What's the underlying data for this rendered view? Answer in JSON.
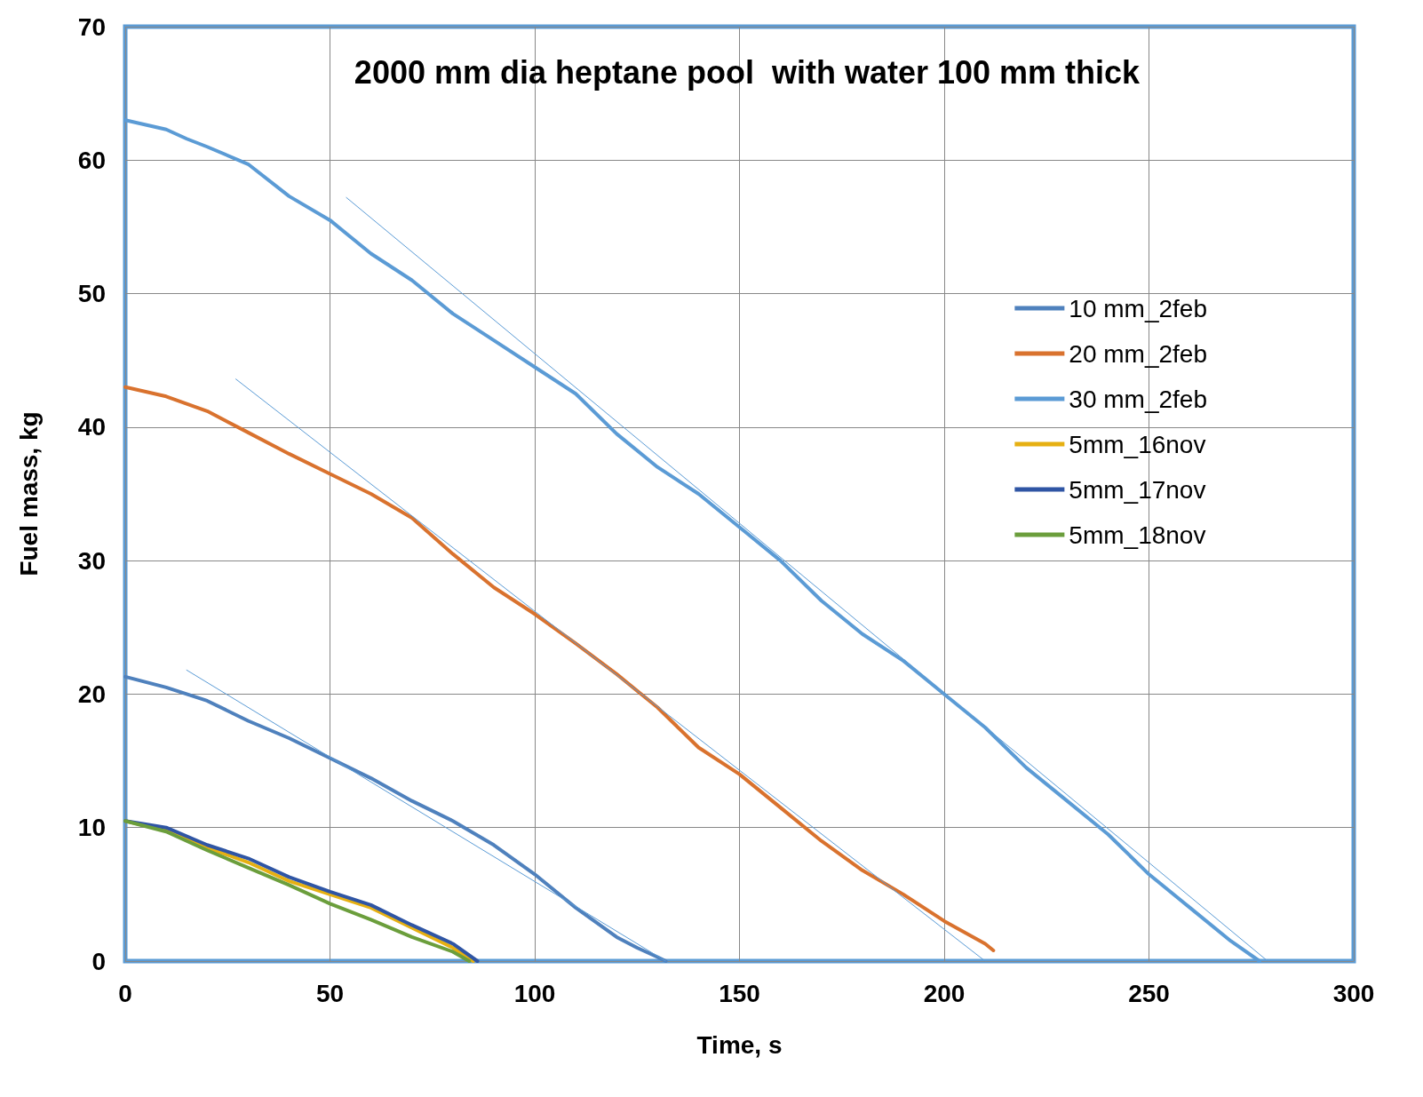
{
  "chart_data": {
    "type": "line",
    "title": "2000 mm dia heptane pool  with water 100 mm thick",
    "xlabel": "Time, s",
    "ylabel": "Fuel mass, kg",
    "xlim": [
      0,
      300
    ],
    "xticks": [
      0,
      50,
      100,
      150,
      200,
      250,
      300
    ],
    "ylim": [
      0,
      70
    ],
    "yticks": [
      0,
      10,
      20,
      30,
      40,
      50,
      60,
      70
    ],
    "grid": true,
    "legend": "right",
    "marker": "none",
    "line_style": "solid",
    "series": [
      {
        "name": "10 mm_2feb",
        "color": "#4f81bd",
        "x": [
          0,
          10,
          20,
          30,
          40,
          50,
          60,
          70,
          80,
          90,
          100,
          110,
          120,
          125,
          130,
          132
        ],
        "values": [
          21.3,
          20.5,
          19.5,
          18,
          16.7,
          15.2,
          13.7,
          12,
          10.5,
          8.7,
          6.5,
          4,
          1.8,
          1,
          0.3,
          0
        ]
      },
      {
        "name": "20 mm_2feb",
        "color": "#d9722e",
        "x": [
          0,
          10,
          20,
          30,
          40,
          50,
          60,
          70,
          80,
          90,
          100,
          110,
          120,
          130,
          140,
          150,
          160,
          170,
          180,
          190,
          200,
          210,
          212
        ],
        "values": [
          43,
          42.3,
          41.2,
          39.6,
          38,
          36.5,
          35,
          33.2,
          30.5,
          28,
          26,
          23.8,
          21.5,
          19,
          16,
          14,
          11.5,
          9,
          6.8,
          5,
          3,
          1.3,
          0.8
        ]
      },
      {
        "name": "30 mm_2feb",
        "color": "#5b9bd5",
        "x": [
          0,
          10,
          15,
          20,
          30,
          40,
          50,
          60,
          70,
          80,
          90,
          100,
          110,
          120,
          130,
          140,
          150,
          160,
          170,
          180,
          190,
          200,
          210,
          220,
          230,
          240,
          250,
          260,
          270,
          277
        ],
        "values": [
          63,
          62.3,
          61.6,
          61,
          59.7,
          57.3,
          55.5,
          53,
          51,
          48.5,
          46.5,
          44.5,
          42.5,
          39.5,
          37,
          35,
          32.5,
          30,
          27,
          24.5,
          22.5,
          20,
          17.5,
          14.5,
          12,
          9.5,
          6.5,
          4,
          1.5,
          0
        ]
      },
      {
        "name": "5mm_16nov",
        "color": "#e6b012",
        "x": [
          0,
          10,
          20,
          30,
          40,
          50,
          60,
          70,
          80,
          85
        ],
        "values": [
          10.5,
          9.8,
          8.5,
          7.4,
          6,
          5,
          4,
          2.5,
          1,
          0
        ]
      },
      {
        "name": "5mm_17nov",
        "color": "#2f55a4",
        "x": [
          0,
          10,
          20,
          30,
          40,
          50,
          60,
          70,
          80,
          86
        ],
        "values": [
          10.5,
          10,
          8.7,
          7.7,
          6.3,
          5.2,
          4.2,
          2.7,
          1.3,
          0
        ]
      },
      {
        "name": "5mm_18nov",
        "color": "#6b9e3c",
        "x": [
          0,
          10,
          20,
          30,
          40,
          50,
          60,
          70,
          80,
          84
        ],
        "values": [
          10.5,
          9.7,
          8.3,
          7,
          5.7,
          4.3,
          3.1,
          1.8,
          0.7,
          0
        ]
      },
      {
        "color": "#5b9bd5",
        "x": [
          54,
          279
        ],
        "values": [
          57.2,
          0
        ]
      },
      {
        "color": "#5b9bd5",
        "x": [
          27,
          210
        ],
        "values": [
          43.6,
          0
        ]
      },
      {
        "color": "#5b9bd5",
        "x": [
          15,
          132
        ],
        "values": [
          21.8,
          0
        ]
      }
    ]
  }
}
